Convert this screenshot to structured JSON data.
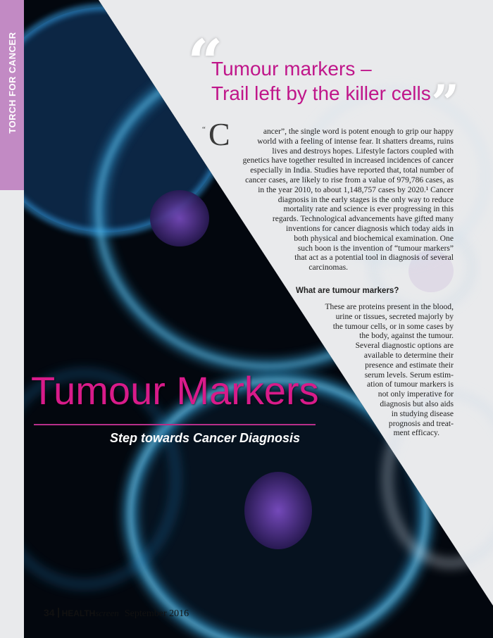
{
  "section_tab": "TORCH FOR CANCER",
  "headline": {
    "line1": "Tumour markers –",
    "line2": "Trail left by the killer cells"
  },
  "intro": {
    "open_quote": "“",
    "dropcap": "C",
    "lines": [
      "ancer”, the single word is potent enough to grip our happy",
      "world with a feeling of intense fear. It shatters dreams, ruins",
      "lives and destroys hopes. Lifestyle factors coupled with",
      "genetics have together resulted in increased incidences of cancer",
      "especially in India. Studies have reported that, total number of",
      "cancer cases, are likely to rise from a value of 979,786 cases, as",
      "in the year 2010, to about 1,148,757 cases by 2020.¹ Cancer",
      "diagnosis in the early stages is the only way to reduce",
      "mortality rate and science is ever progressing in this",
      "regards. Technological advancements have gifted many",
      "inventions for cancer diagnosis which today aids in",
      "both physical and biochemical examination. One",
      "such boon is the invention of “tumour markers”",
      "that act as a potential tool in diagnosis of several",
      "carcinomas."
    ]
  },
  "subheading": "What are tumour markers?",
  "para2": {
    "lines": [
      "These are proteins present in the blood,",
      "urine or tissues, secreted majorly by",
      "the tumour cells, or in some cases by",
      "the body, against the tumour.",
      "Several diagnostic options are",
      "available to determine their",
      "presence and estimate their",
      "serum levels. Serum estim-",
      "ation of tumour markers is",
      "not only imperative for",
      "diagnosis but also aids",
      "in studying disease",
      "prognosis and treat-",
      "ment efficacy."
    ]
  },
  "title": "Tumour Markers",
  "subtitle": "Step towards Cancer Diagnosis",
  "footer": {
    "page": "34",
    "brand_bold": "HEALTH",
    "brand_italic": "screen",
    "date": "September 2016"
  },
  "colors": {
    "accent": "#d81b8a",
    "side_tab": "#c28ac4",
    "background_dark": "#000000",
    "cell_glow": "#3aa6e0"
  }
}
